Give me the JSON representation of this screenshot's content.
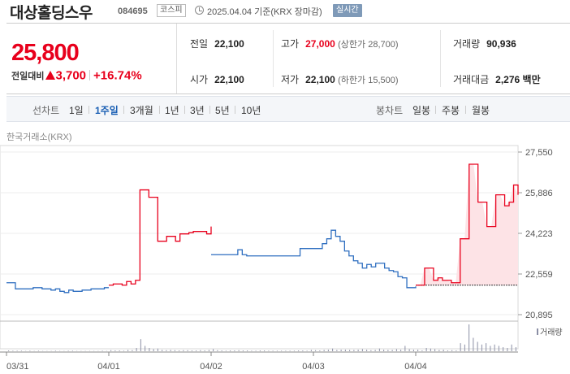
{
  "header": {
    "stock_name": "대상홀딩스우",
    "stock_code": "084695",
    "market": "코스피",
    "base_date": "2025.04.04 기준(KRX 장마감)",
    "realtime_label": "실시간"
  },
  "quote": {
    "price": "25,800",
    "change_label": "전일대비",
    "change_amount": "3,700",
    "change_rate": "+16.74%",
    "prev_close_label": "전일",
    "prev_close": "22,100",
    "high_label": "고가",
    "high": "27,000",
    "upper_limit": "(상한가 28,700)",
    "volume_label": "거래량",
    "volume": "90,936",
    "open_label": "시가",
    "open": "22,100",
    "low_label": "저가",
    "low": "22,100",
    "lower_limit": "(하한가 15,500)",
    "amount_label": "거래대금",
    "amount": "2,276",
    "amount_unit": "백만"
  },
  "tabs": {
    "line_label": "선차트",
    "line_tabs": [
      "1일",
      "1주일",
      "3개월",
      "1년",
      "3년",
      "5년",
      "10년"
    ],
    "line_active": "1주일",
    "candle_label": "봉차트",
    "candle_tabs": [
      "일봉",
      "주봉",
      "월봉"
    ]
  },
  "source": "한국거래소(KRX)",
  "colors": {
    "up": "#e8001c",
    "down": "#2f6fc0",
    "up_fill": "#fde3e6"
  },
  "chart_data": {
    "type": "line",
    "title": "",
    "x_ticks": [
      "03/31",
      "04/01",
      "04/02",
      "04/03",
      "04/04"
    ],
    "y_ticks": [
      "27,550",
      "25,886",
      "24,223",
      "22,559",
      "20,895"
    ],
    "ylim": [
      20895,
      27550
    ],
    "base_price": 22100,
    "volume_label": "거래량",
    "days": [
      {
        "date": "03/31",
        "trend": "down",
        "prices": [
          22200,
          22200,
          21950,
          21950,
          21950,
          21950,
          22000,
          22000,
          21950,
          21950,
          21900,
          21950,
          21850,
          21800,
          21900,
          21850,
          21850,
          21900,
          21900,
          21950,
          21950,
          21950,
          22000,
          22000
        ]
      },
      {
        "date": "04/01",
        "trend": "up",
        "prices": [
          22100,
          22150,
          22150,
          22100,
          22250,
          22150,
          22300,
          26000,
          26000,
          25700,
          25700,
          23900,
          23900,
          24100,
          24100,
          23900,
          24200,
          24200,
          24250,
          24300,
          24300,
          24300,
          24200,
          24500
        ]
      },
      {
        "date": "04/02",
        "trend": "down",
        "prices": [
          23350,
          23350,
          23350,
          23350,
          23350,
          23350,
          23550,
          23350,
          23300,
          23300,
          23300,
          23300,
          23300,
          23300,
          23300,
          23300,
          23300,
          23300,
          23300,
          23300,
          23600,
          23600,
          23600,
          23600
        ]
      },
      {
        "date": "04/03",
        "trend": "down",
        "prices": [
          23600,
          23600,
          23800,
          24000,
          24350,
          24100,
          23900,
          23500,
          23300,
          23100,
          23000,
          22800,
          22950,
          22850,
          23000,
          23000,
          22800,
          22700,
          22650,
          22450,
          22400,
          22000,
          22000,
          22050
        ]
      },
      {
        "date": "04/04",
        "trend": "up",
        "prices": [
          22100,
          22100,
          22800,
          22800,
          22300,
          22400,
          22300,
          22300,
          22200,
          22200,
          24000,
          24000,
          27050,
          27050,
          25500,
          25500,
          24500,
          24500,
          25800,
          25800,
          25350,
          25500,
          26200,
          25800
        ]
      }
    ],
    "volume_relative": [
      0.03,
      0.02,
      0.02,
      0.02,
      0.01,
      0.02,
      0.01,
      0.02,
      0.01,
      0.01,
      0.01,
      0.02,
      0.01,
      0.01,
      0.02,
      0.02,
      0.01,
      0.01,
      0.01,
      0.01,
      0.01,
      0.01,
      0.02,
      0.01,
      0.04,
      0.03,
      0.03,
      0.02,
      0.05,
      0.04,
      0.12,
      0.45,
      0.2,
      0.12,
      0.08,
      0.1,
      0.05,
      0.04,
      0.05,
      0.04,
      0.03,
      0.04,
      0.04,
      0.03,
      0.03,
      0.04,
      0.03,
      0.05,
      0.08,
      0.04,
      0.03,
      0.02,
      0.03,
      0.03,
      0.04,
      0.03,
      0.03,
      0.02,
      0.02,
      0.03,
      0.03,
      0.02,
      0.02,
      0.02,
      0.02,
      0.02,
      0.02,
      0.02,
      0.03,
      0.03,
      0.02,
      0.05,
      0.04,
      0.03,
      0.05,
      0.06,
      0.1,
      0.05,
      0.06,
      0.06,
      0.05,
      0.05,
      0.06,
      0.08,
      0.06,
      0.04,
      0.05,
      0.1,
      0.06,
      0.05,
      0.05,
      0.08,
      0.06,
      0.2,
      0.08,
      0.06,
      0.06,
      0.03,
      0.12,
      0.1,
      0.08,
      0.05,
      0.06,
      0.03,
      0.04,
      0.03,
      0.3,
      0.25,
      1.0,
      0.5,
      0.35,
      0.25,
      0.3,
      0.2,
      0.25,
      0.2,
      0.15,
      0.12,
      0.25,
      0.15
    ]
  }
}
